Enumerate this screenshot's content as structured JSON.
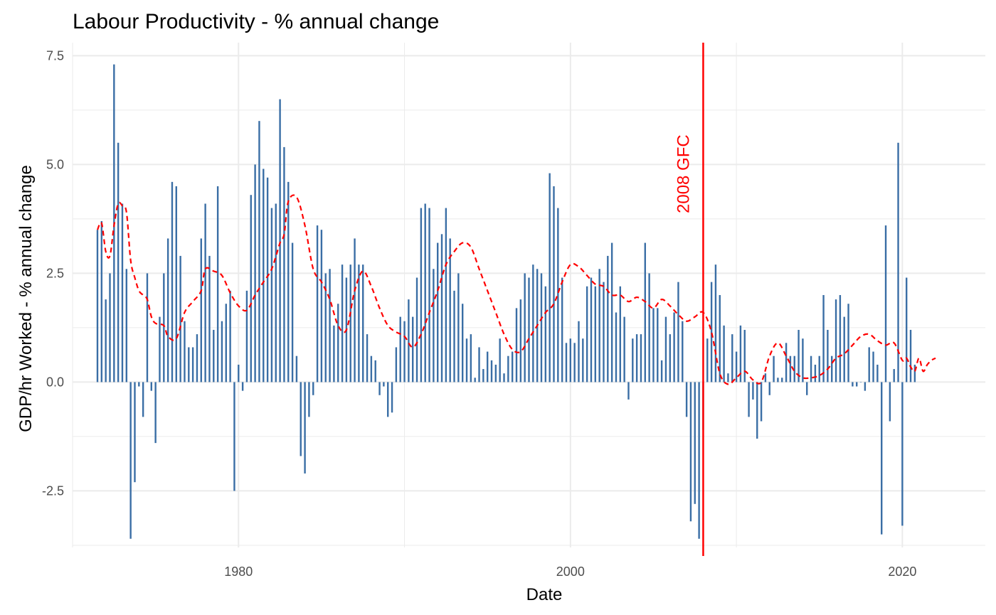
{
  "chart_data": {
    "type": "bar",
    "title": "Labour Productivity - % annual change",
    "xlabel": "Date",
    "ylabel": "GDP/hr Worked - % annual change",
    "xlim": [
      1970,
      2025
    ],
    "ylim": [
      -3.8,
      7.8
    ],
    "x_ticks": [
      1980,
      2000,
      2020
    ],
    "x_tick_labels": [
      "1980",
      "2000",
      "2020"
    ],
    "y_ticks": [
      -2.5,
      0,
      2.5,
      5,
      7.5
    ],
    "y_tick_labels": [
      "-2.5",
      "0.0",
      "2.5",
      "5.0",
      "7.5"
    ],
    "grid": true,
    "bar_color": "#3a6ea5",
    "smooth_color": "#ff0000",
    "series": [
      {
        "values": [
          3.5,
          3.7,
          1.9,
          2.5,
          7.3,
          5.5,
          4.1,
          2.6,
          -3.6,
          -2.3,
          -0.1,
          -0.8,
          2.5,
          -0.2,
          -1.4,
          1.5,
          2.5,
          3.3,
          4.6,
          4.5,
          2.9,
          1.4,
          0.8,
          0.8,
          1.1,
          3.3,
          4.1,
          2.9,
          1.2,
          4.5,
          1.4,
          1.8,
          2.1,
          -2.5,
          0.4,
          -0.2,
          2.1,
          4.3,
          5.0,
          6.0,
          4.9,
          4.7,
          4.0,
          4.1,
          6.5,
          5.4,
          4.6,
          3.2,
          0.6,
          -1.7,
          -2.1,
          -0.8,
          -0.3,
          3.6,
          3.5,
          2.5,
          2.6,
          1.3,
          1.8,
          2.7,
          2.4,
          2.7,
          3.3,
          2.7,
          2.7,
          1.1,
          0.6,
          0.5,
          -0.3,
          -0.1,
          -0.8,
          -0.7,
          0.8,
          1.5,
          1.4,
          1.9,
          1.5,
          2.4,
          4.0,
          4.1,
          4.0,
          2.6,
          3.2,
          3.4,
          4.0,
          3.3,
          2.1,
          2.5,
          1.8,
          1.0,
          1.1,
          0.1,
          0.8,
          0.3,
          0.7,
          0.5,
          0.4,
          1.0,
          0.2,
          0.6,
          0.7,
          1.7,
          1.9,
          2.5,
          2.4,
          2.7,
          2.6,
          2.5,
          2.2,
          4.8,
          4.5,
          4.0,
          2.4,
          0.9,
          1.0,
          0.9,
          1.4,
          1.0,
          2.2,
          2.4,
          2.2,
          2.6,
          2.3,
          2.9,
          3.2,
          1.6,
          2.2,
          1.5,
          -0.4,
          1.0,
          1.1,
          1.1,
          3.2,
          2.5,
          1.7,
          1.7,
          0.5,
          1.5,
          1.1,
          1.6,
          2.3,
          1.4,
          -0.8,
          -3.2,
          -2.8,
          -3.6,
          -1.1,
          1.0,
          2.3,
          2.7,
          2.0,
          1.3,
          0.2,
          1.1,
          0.7,
          1.3,
          1.2,
          -0.8,
          -0.4,
          -1.3,
          -0.9,
          0.2,
          -0.3,
          0.6,
          0.1,
          0.1,
          0.9,
          0.6,
          0.6,
          1.2,
          1.0,
          -0.3,
          0.6,
          0.4,
          0.6,
          2.0,
          1.2,
          0.6,
          1.9,
          2.0,
          1.5,
          1.8,
          -0.1,
          -0.1,
          0.0,
          -0.2,
          0.8,
          0.7,
          0.4,
          -3.5,
          3.6,
          -0.9,
          0.3,
          5.5,
          -3.3,
          2.4,
          1.2,
          0.4
        ]
      }
    ],
    "x_start": 1971.5,
    "x_step": 0.25,
    "smooth_points": [
      [
        1971.5,
        3.5
      ],
      [
        1971.75,
        3.65
      ],
      [
        1972.0,
        3.0
      ],
      [
        1972.25,
        2.9
      ],
      [
        1972.5,
        3.6
      ],
      [
        1972.75,
        4.1
      ],
      [
        1973.0,
        4.05
      ],
      [
        1973.25,
        3.9
      ],
      [
        1973.5,
        2.8
      ],
      [
        1973.75,
        2.4
      ],
      [
        1974.0,
        2.1
      ],
      [
        1974.25,
        2.0
      ],
      [
        1974.5,
        1.9
      ],
      [
        1974.75,
        1.5
      ],
      [
        1975.0,
        1.35
      ],
      [
        1975.5,
        1.3
      ],
      [
        1975.75,
        1.05
      ],
      [
        1976.25,
        1.0
      ],
      [
        1976.75,
        1.6
      ],
      [
        1977.25,
        1.85
      ],
      [
        1977.75,
        2.1
      ],
      [
        1978.0,
        2.6
      ],
      [
        1978.5,
        2.55
      ],
      [
        1979.0,
        2.45
      ],
      [
        1979.5,
        2.05
      ],
      [
        1980.0,
        1.75
      ],
      [
        1980.5,
        1.65
      ],
      [
        1981.0,
        2.0
      ],
      [
        1981.5,
        2.3
      ],
      [
        1982.0,
        2.6
      ],
      [
        1982.5,
        3.2
      ],
      [
        1982.75,
        3.4
      ],
      [
        1983.0,
        4.15
      ],
      [
        1983.5,
        4.25
      ],
      [
        1984.0,
        3.6
      ],
      [
        1984.5,
        2.6
      ],
      [
        1985.0,
        2.3
      ],
      [
        1985.5,
        1.9
      ],
      [
        1986.0,
        1.3
      ],
      [
        1986.5,
        1.2
      ],
      [
        1987.0,
        2.1
      ],
      [
        1987.5,
        2.55
      ],
      [
        1988.0,
        2.2
      ],
      [
        1988.5,
        1.7
      ],
      [
        1989.0,
        1.3
      ],
      [
        1989.5,
        1.15
      ],
      [
        1990.0,
        1.05
      ],
      [
        1990.5,
        0.8
      ],
      [
        1991.0,
        1.1
      ],
      [
        1991.5,
        1.6
      ],
      [
        1992.0,
        2.1
      ],
      [
        1992.5,
        2.7
      ],
      [
        1993.0,
        3.0
      ],
      [
        1993.5,
        3.2
      ],
      [
        1994.0,
        3.1
      ],
      [
        1994.5,
        2.6
      ],
      [
        1995.0,
        2.1
      ],
      [
        1995.5,
        1.6
      ],
      [
        1996.0,
        1.1
      ],
      [
        1996.5,
        0.75
      ],
      [
        1997.0,
        0.7
      ],
      [
        1997.5,
        1.0
      ],
      [
        1998.0,
        1.3
      ],
      [
        1998.5,
        1.6
      ],
      [
        1999.0,
        1.8
      ],
      [
        1999.5,
        2.3
      ],
      [
        2000.0,
        2.7
      ],
      [
        2000.5,
        2.65
      ],
      [
        2001.0,
        2.45
      ],
      [
        2001.5,
        2.25
      ],
      [
        2002.0,
        2.2
      ],
      [
        2002.5,
        2.0
      ],
      [
        2003.0,
        2.0
      ],
      [
        2003.5,
        1.85
      ],
      [
        2004.0,
        1.95
      ],
      [
        2004.5,
        1.85
      ],
      [
        2005.0,
        1.7
      ],
      [
        2005.5,
        1.9
      ],
      [
        2006.0,
        1.75
      ],
      [
        2006.5,
        1.55
      ],
      [
        2007.0,
        1.4
      ],
      [
        2007.5,
        1.5
      ],
      [
        2008.0,
        1.6
      ],
      [
        2008.5,
        1.15
      ],
      [
        2009.0,
        0.2
      ],
      [
        2009.5,
        -0.05
      ],
      [
        2010.0,
        0.1
      ],
      [
        2010.5,
        0.25
      ],
      [
        2011.0,
        0.05
      ],
      [
        2011.5,
        0.0
      ],
      [
        2012.0,
        0.6
      ],
      [
        2012.5,
        0.9
      ],
      [
        2013.0,
        0.6
      ],
      [
        2013.5,
        0.25
      ],
      [
        2014.0,
        0.1
      ],
      [
        2014.5,
        0.1
      ],
      [
        2015.0,
        0.15
      ],
      [
        2015.5,
        0.3
      ],
      [
        2016.0,
        0.55
      ],
      [
        2016.5,
        0.65
      ],
      [
        2017.0,
        0.85
      ],
      [
        2017.5,
        1.05
      ],
      [
        2018.0,
        1.1
      ],
      [
        2018.5,
        0.95
      ],
      [
        2019.0,
        0.85
      ],
      [
        2019.5,
        0.9
      ],
      [
        2020.0,
        0.5
      ],
      [
        2020.25,
        0.55
      ],
      [
        2020.5,
        0.35
      ],
      [
        2020.75,
        0.25
      ],
      [
        2021.0,
        0.55
      ],
      [
        2021.25,
        0.25
      ],
      [
        2021.5,
        0.4
      ],
      [
        2021.75,
        0.5
      ],
      [
        2022.0,
        0.55
      ]
    ],
    "vline": {
      "x": 2008,
      "label": "2008 GFC"
    }
  }
}
